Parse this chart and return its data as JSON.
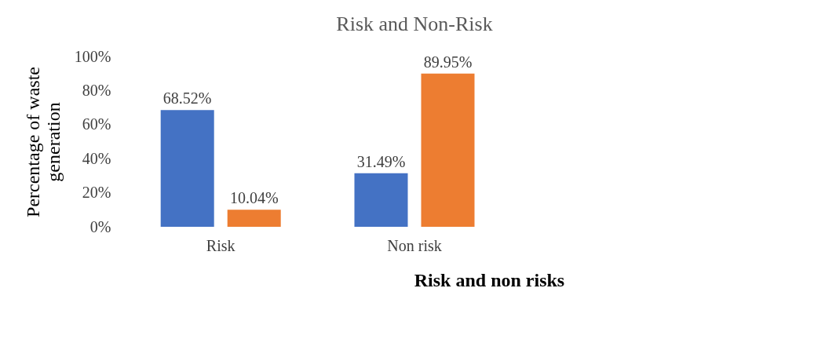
{
  "chart_data": {
    "type": "bar",
    "title": "Risk and Non-Risk",
    "xlabel": "Risk and non risks",
    "ylabel": "Percentage of waste generation",
    "categories": [
      "Risk",
      "Non risk",
      null
    ],
    "series": [
      {
        "color": "#4472c4",
        "values": [
          68.52,
          31.49,
          null
        ],
        "value_labels": [
          "68.52%",
          "31.49%",
          null
        ]
      },
      {
        "color": "#ed7d31",
        "values": [
          10.04,
          89.95,
          null
        ],
        "value_labels": [
          "10.04%",
          "89.95%",
          null
        ]
      }
    ],
    "ylim": [
      0,
      100
    ],
    "yticks": [
      {
        "value": 0,
        "label": "0%"
      },
      {
        "value": 20,
        "label": "20%"
      },
      {
        "value": 40,
        "label": "40%"
      },
      {
        "value": 60,
        "label": "60%"
      },
      {
        "value": 80,
        "label": "80%"
      },
      {
        "value": 100,
        "label": "100%"
      }
    ],
    "grid": false
  }
}
